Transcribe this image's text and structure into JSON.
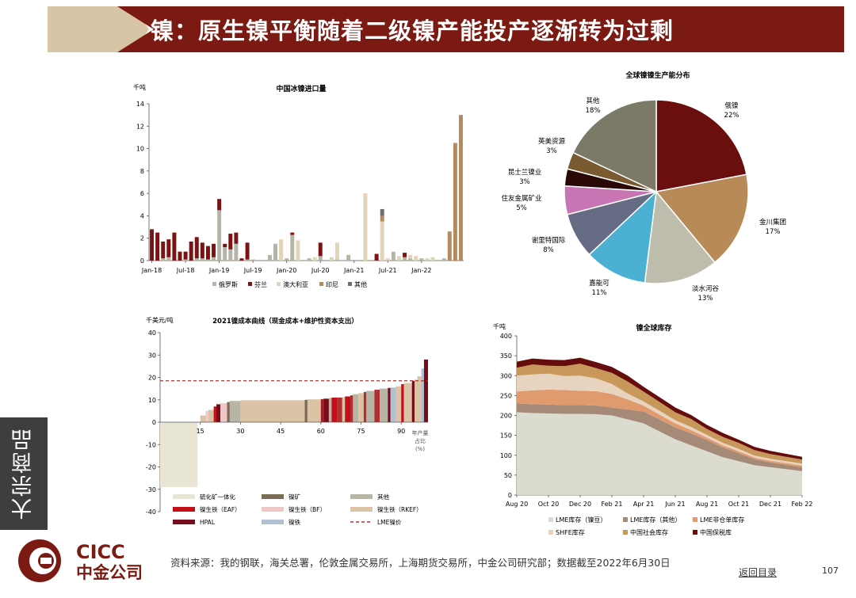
{
  "header": {
    "title": "镍：原生镍平衡随着二级镍产能投产逐渐转为过剩"
  },
  "side_tab": "大宗商品",
  "footer": {
    "logo_en": "CICC",
    "logo_cn": "中金公司",
    "source": "资料来源：我的钢联，海关总署，伦敦金属交易所，上海期货交易所，中金公司研究部；数据截至2022年6月30日",
    "back": "返回目录",
    "page": "107"
  },
  "colors": {
    "brand_red": "#7a1a12",
    "brand_tan": "#d7c5a6",
    "grey": "#3e3e3e"
  },
  "chart_data": [
    {
      "id": "imports",
      "type": "bar",
      "title": "中国冰镍进口量",
      "ylabel": "千吨",
      "ylim": [
        0,
        14
      ],
      "yticks": [
        0,
        2,
        4,
        6,
        8,
        10,
        12,
        14
      ],
      "xtick_labels": [
        "Jan-18",
        "Jul-18",
        "Jan-19",
        "Jul-19",
        "Jan-20",
        "Jul-20",
        "Jan-21",
        "Jul-21",
        "Jan-22"
      ],
      "legend": [
        "俄罗斯",
        "芬兰",
        "澳大利亚",
        "印尼",
        "其他"
      ],
      "series_colors": [
        "#b4b5a6",
        "#7a1414",
        "#e3d3b8",
        "#b58a5e",
        "#6e6e6e"
      ],
      "stack": [
        [
          0,
          2.8,
          0,
          0,
          0
        ],
        [
          0,
          2.5,
          0,
          0,
          0
        ],
        [
          0.2,
          1.5,
          0,
          0,
          0
        ],
        [
          0.3,
          1.6,
          0,
          0,
          0
        ],
        [
          0,
          2.5,
          0,
          0,
          0
        ],
        [
          0,
          0.8,
          0,
          0,
          0
        ],
        [
          0.1,
          0.7,
          0,
          0,
          0
        ],
        [
          0,
          1.7,
          0,
          0,
          0
        ],
        [
          0.2,
          1.9,
          0,
          0,
          0
        ],
        [
          0.2,
          1.4,
          0,
          0,
          0
        ],
        [
          0.1,
          1.2,
          0,
          0,
          0
        ],
        [
          0.3,
          1.2,
          0,
          0,
          0
        ],
        [
          4.5,
          1.0,
          0,
          0,
          0
        ],
        [
          1.2,
          0.3,
          0,
          0,
          0
        ],
        [
          1.0,
          1.4,
          0,
          0,
          0
        ],
        [
          1.5,
          1.0,
          0,
          0,
          0
        ],
        [
          0,
          0.2,
          0,
          0,
          0
        ],
        [
          0.1,
          1.5,
          0,
          0,
          0
        ],
        [
          0.1,
          0,
          0,
          0,
          0
        ],
        [
          0,
          0,
          0,
          0,
          0
        ],
        [
          0,
          0,
          0,
          0,
          0
        ],
        [
          0.5,
          0,
          0,
          0,
          0
        ],
        [
          1.5,
          0,
          0,
          0,
          0
        ],
        [
          0,
          0,
          1.9,
          0,
          0
        ],
        [
          0.2,
          0,
          0,
          0,
          0
        ],
        [
          2.3,
          0.2,
          0,
          0,
          0
        ],
        [
          0,
          0,
          1.8,
          0,
          0
        ],
        [
          0,
          0,
          0,
          0,
          0
        ],
        [
          0.2,
          0,
          0,
          0,
          0
        ],
        [
          0,
          0,
          0.3,
          0,
          0
        ],
        [
          0.4,
          1.2,
          0,
          0,
          0
        ],
        [
          0,
          0,
          0,
          0,
          0
        ],
        [
          0,
          0,
          0.3,
          0,
          0
        ],
        [
          0.1,
          0,
          1.5,
          0,
          0
        ],
        [
          0,
          0,
          0,
          0,
          0
        ],
        [
          0.5,
          0,
          0,
          0,
          0
        ],
        [
          0,
          0,
          0,
          0,
          0
        ],
        [
          0,
          0,
          0,
          0,
          0
        ],
        [
          0,
          0,
          6.0,
          0,
          0
        ],
        [
          0,
          0,
          0,
          0,
          0
        ],
        [
          0,
          0.6,
          0,
          0,
          0
        ],
        [
          0,
          0,
          3.5,
          0.5,
          0.6
        ],
        [
          0,
          0,
          0.2,
          0,
          0
        ],
        [
          0.8,
          0,
          0,
          0,
          0
        ],
        [
          0,
          0,
          0.4,
          0,
          0
        ],
        [
          0.3,
          0.4,
          0,
          0,
          0
        ],
        [
          0.2,
          0,
          0.3,
          0,
          0
        ],
        [
          0,
          0,
          0.4,
          0,
          0
        ],
        [
          0.2,
          0,
          0,
          0,
          0
        ],
        [
          0,
          0,
          0.2,
          0,
          0
        ],
        [
          0,
          0,
          0.3,
          0,
          0
        ],
        [
          0,
          0,
          0,
          0,
          0
        ],
        [
          0.2,
          0,
          0,
          0,
          0
        ],
        [
          0,
          0,
          0,
          2.6,
          0
        ],
        [
          0,
          0,
          0,
          10.5,
          0
        ],
        [
          0,
          0,
          0,
          13.0,
          0
        ]
      ]
    },
    {
      "id": "pie",
      "type": "pie",
      "title": "全球镍镍生产能分布",
      "slices": [
        {
          "label": "俄镍",
          "pct": "22%",
          "value": 22,
          "color": "#6b0e0e"
        },
        {
          "label": "金川集团",
          "pct": "17%",
          "value": 17,
          "color": "#b88a58"
        },
        {
          "label": "淡水河谷",
          "pct": "13%",
          "value": 13,
          "color": "#bdbcad"
        },
        {
          "label": "嘉能可",
          "pct": "11%",
          "value": 11,
          "color": "#4bb0d1"
        },
        {
          "label": "谢里特国际",
          "pct": "8%",
          "value": 8,
          "color": "#666b84"
        },
        {
          "label": "住友金属矿业",
          "pct": "5%",
          "value": 5,
          "color": "#c876b3"
        },
        {
          "label": "昆士兰镍业",
          "pct": "3%",
          "value": 3,
          "color": "#2a0808"
        },
        {
          "label": "英美资源",
          "pct": "3%",
          "value": 3,
          "color": "#7a5a30"
        },
        {
          "label": "其他",
          "pct": "18%",
          "value": 18,
          "color": "#7b7a66"
        }
      ]
    },
    {
      "id": "cost",
      "type": "bar",
      "title": "2021镍成本曲线（现金成本+维护性资本支出）",
      "ylabel": "千美元/吨",
      "ylim": [
        -40,
        40
      ],
      "yticks": [
        -40.0,
        -30.0,
        -20.0,
        -10.0,
        0.0,
        10.0,
        20.0,
        30.0,
        40.0
      ],
      "xlim": [
        0,
        100
      ],
      "xticks": [
        15,
        30,
        45,
        60,
        75,
        90
      ],
      "xlabel": "年产量占比(%)",
      "xlabel_lines": [
        "年产量",
        "占比",
        "(%)"
      ],
      "lme_price": 18.5,
      "legend": [
        {
          "label": "硫化矿一体化",
          "color": "#e8e5d5",
          "kind": "bar"
        },
        {
          "label": "镍矿",
          "color": "#7b6a55",
          "kind": "bar"
        },
        {
          "label": "其他",
          "color": "#b7b5a6",
          "kind": "bar"
        },
        {
          "label": "镍生铁（EAF）",
          "color": "#c2101b",
          "kind": "bar"
        },
        {
          "label": "镍生铁（BF）",
          "color": "#f0c7c7",
          "kind": "bar"
        },
        {
          "label": "镍生铁（RKEF）",
          "color": "#dbc3a5",
          "kind": "bar"
        },
        {
          "label": "HPAL",
          "color": "#750d1a",
          "kind": "bar"
        },
        {
          "label": "镍铁",
          "color": "#b1c0d3",
          "kind": "bar"
        },
        {
          "label": "LME镍价",
          "color": "#b03030",
          "kind": "dash"
        }
      ],
      "segments": [
        [
          0,
          14,
          -29,
          0
        ],
        [
          14,
          15,
          0.2,
          4
        ],
        [
          15,
          17,
          3.0,
          5
        ],
        [
          17,
          18,
          5.0,
          4
        ],
        [
          18,
          20,
          5.5,
          5
        ],
        [
          20,
          21,
          7.0,
          3
        ],
        [
          21,
          22.5,
          8.0,
          6
        ],
        [
          22.5,
          25,
          8.5,
          4
        ],
        [
          25,
          26,
          9.0,
          1
        ],
        [
          26,
          30,
          9.5,
          2
        ],
        [
          30,
          54,
          9.8,
          5
        ],
        [
          54,
          55,
          10.0,
          1
        ],
        [
          55,
          60,
          10.2,
          5
        ],
        [
          60,
          61,
          10.3,
          3
        ],
        [
          61,
          63,
          10.5,
          6
        ],
        [
          63,
          64,
          10.8,
          2
        ],
        [
          64,
          66,
          11.0,
          3
        ],
        [
          66,
          68,
          11.0,
          8
        ],
        [
          68,
          69,
          11.2,
          5
        ],
        [
          69,
          71,
          11.5,
          3
        ],
        [
          71,
          72,
          12.0,
          8
        ],
        [
          72,
          74,
          12.5,
          2
        ],
        [
          74,
          76,
          13.0,
          5
        ],
        [
          76,
          77,
          13.5,
          8
        ],
        [
          77,
          80,
          14.0,
          2
        ],
        [
          80,
          82,
          14.5,
          8
        ],
        [
          82,
          85,
          15.0,
          2
        ],
        [
          85,
          86,
          15.3,
          6
        ],
        [
          86,
          88,
          15.5,
          7
        ],
        [
          88,
          90,
          16.0,
          5
        ],
        [
          90,
          91,
          17.0,
          3
        ],
        [
          91,
          94,
          17.5,
          5
        ],
        [
          94,
          95,
          18.5,
          6
        ],
        [
          95,
          96,
          19.0,
          5
        ],
        [
          96,
          97.5,
          20.5,
          5
        ],
        [
          97.5,
          98.5,
          24.0,
          7
        ],
        [
          98.5,
          100,
          28.0,
          6
        ]
      ]
    },
    {
      "id": "inventory",
      "type": "area",
      "title": "镍全球库存",
      "ylabel": "千吨",
      "ylim": [
        0,
        400
      ],
      "yticks": [
        0,
        50,
        100,
        150,
        200,
        250,
        300,
        350,
        400
      ],
      "xtick_labels": [
        "Aug 20",
        "Oct 20",
        "Dec 20",
        "Feb 21",
        "Apr 21",
        "Jun 21",
        "Aug 21",
        "Oct 21",
        "Dec 21",
        "Feb 22"
      ],
      "legend": [
        "LME库存（镍豆）",
        "LME库存（其他）",
        "LME非仓单库存",
        "SHFE库存",
        "中国社会库存",
        "中国保税库"
      ],
      "series_colors": [
        "#dcdbd0",
        "#a58a78",
        "#e19a6d",
        "#e8d4be",
        "#c7985a",
        "#650c0c"
      ],
      "x_months": [
        0,
        1,
        2,
        3,
        4,
        5,
        6,
        7,
        8,
        9,
        10,
        11,
        12,
        13,
        14,
        15,
        16,
        18
      ],
      "layers": [
        [
          208,
          206,
          205,
          204,
          204,
          203,
          200,
          190,
          180,
          160,
          140,
          125,
          110,
          95,
          85,
          75,
          70,
          60
        ],
        [
          22,
          22,
          22,
          22,
          22,
          22,
          20,
          25,
          30,
          30,
          30,
          30,
          28,
          25,
          20,
          15,
          12,
          10
        ],
        [
          30,
          35,
          38,
          38,
          36,
          36,
          34,
          25,
          15,
          12,
          10,
          8,
          6,
          5,
          5,
          4,
          4,
          4
        ],
        [
          40,
          40,
          40,
          35,
          38,
          32,
          25,
          15,
          10,
          10,
          8,
          8,
          7,
          6,
          6,
          5,
          5,
          5
        ],
        [
          20,
          25,
          20,
          25,
          30,
          26,
          28,
          30,
          25,
          22,
          20,
          20,
          15,
          15,
          15,
          14,
          12,
          10
        ],
        [
          15,
          15,
          15,
          15,
          15,
          15,
          15,
          15,
          12,
          12,
          12,
          10,
          10,
          10,
          8,
          8,
          8,
          7
        ]
      ]
    }
  ]
}
